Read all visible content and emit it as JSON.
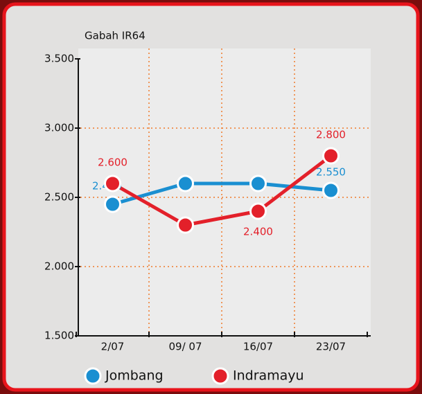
{
  "chart_data": {
    "type": "line",
    "title": "Gabah IR64",
    "categories": [
      "2/07",
      "09/ 07",
      "16/07",
      "23/07"
    ],
    "series": [
      {
        "name": "Jombang",
        "color": "#1a8fd1",
        "values": [
          2450,
          2600,
          2600,
          2550
        ],
        "value_labels": [
          "2.450",
          null,
          null,
          "2.550"
        ]
      },
      {
        "name": "Indramayu",
        "color": "#e3202a",
        "values": [
          2600,
          2300,
          2400,
          2800
        ],
        "value_labels": [
          "2.600",
          null,
          "2.400",
          "2.800"
        ]
      }
    ],
    "ylim": [
      1500,
      3500
    ],
    "yticks": [
      {
        "value": 1500,
        "label": "1.500"
      },
      {
        "value": 2000,
        "label": "2.000"
      },
      {
        "value": 2500,
        "label": "2.500"
      },
      {
        "value": 3000,
        "label": "3.000"
      },
      {
        "value": 3500,
        "label": "3.500"
      }
    ],
    "grid": true,
    "legend": "bottom"
  }
}
